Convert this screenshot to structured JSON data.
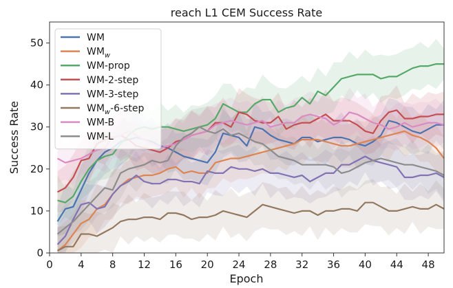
{
  "chart_data": {
    "type": "line",
    "title": "reach L1 CEM Success Rate",
    "xlabel": "Epoch",
    "ylabel": "Success Rate",
    "xlim": [
      0,
      50
    ],
    "ylim": [
      0,
      55
    ],
    "xticks": [
      0,
      4,
      8,
      12,
      16,
      20,
      24,
      28,
      32,
      36,
      40,
      44,
      48
    ],
    "yticks": [
      0,
      10,
      20,
      30,
      40,
      50
    ],
    "legend_position": "upper-left",
    "x": [
      1,
      2,
      3,
      4,
      5,
      6,
      7,
      8,
      9,
      10,
      11,
      12,
      13,
      14,
      15,
      16,
      17,
      18,
      19,
      20,
      21,
      22,
      23,
      24,
      25,
      26,
      27,
      28,
      29,
      30,
      31,
      32,
      33,
      34,
      35,
      36,
      37,
      38,
      39,
      40,
      41,
      42,
      43,
      44,
      45,
      46,
      47,
      48,
      49,
      50
    ],
    "series": [
      {
        "name": "WM",
        "label_main": "WM",
        "label_sub": "",
        "label_tail": "",
        "color": "#4c72b0",
        "values": [
          7.5,
          10.5,
          11,
          15,
          19,
          22,
          24,
          25,
          26.5,
          27,
          27.5,
          27,
          26.5,
          25.5,
          25,
          24,
          23,
          22.5,
          22,
          21.5,
          24,
          28.5,
          28,
          27.5,
          25.5,
          30,
          29.5,
          28,
          27,
          26.5,
          26,
          27.5,
          27.5,
          26.5,
          27,
          27.5,
          27.5,
          27,
          26,
          25.5,
          26.5,
          28,
          31.5,
          31,
          30,
          29,
          28.5,
          29.5,
          30.5,
          30.5
        ]
      },
      {
        "name": "WMw",
        "label_main": "WM",
        "label_sub": "w",
        "label_tail": "",
        "color": "#dd8452",
        "values": [
          0.5,
          2,
          4.5,
          7,
          8,
          10.5,
          11.5,
          14,
          16,
          17.5,
          18,
          18.5,
          18.5,
          19,
          20,
          20.5,
          19,
          19.5,
          19,
          19,
          21.5,
          22,
          22.5,
          22.5,
          23,
          23.5,
          24,
          24.5,
          25,
          25.5,
          26,
          27,
          27,
          27,
          26.5,
          26,
          25.5,
          25.5,
          26,
          26.5,
          27,
          27.5,
          28,
          28.5,
          29,
          28,
          27.5,
          26.5,
          25,
          22.5
        ]
      },
      {
        "name": "WM-prop",
        "label_main": "WM-prop",
        "label_sub": "",
        "label_tail": "",
        "color": "#55a868",
        "values": [
          12.5,
          12,
          13.5,
          17,
          20,
          22,
          23,
          23.5,
          26,
          28,
          29.5,
          30,
          29.5,
          30,
          30,
          29.5,
          29,
          29.5,
          30,
          30.5,
          32,
          35.5,
          34.5,
          33.5,
          33.5,
          35.5,
          36.5,
          36.5,
          33.5,
          34.5,
          35,
          37,
          35.5,
          38.5,
          37.5,
          39.5,
          41.5,
          42,
          42.5,
          42.5,
          42.5,
          41.5,
          42,
          42,
          43,
          44,
          44.5,
          44.5,
          45,
          45
        ]
      },
      {
        "name": "WM-2-step",
        "label_main": "WM-2-step",
        "label_sub": "",
        "label_tail": "",
        "color": "#c44e52",
        "values": [
          14.5,
          15.5,
          18,
          22,
          22.5,
          26,
          27,
          27.5,
          28,
          27,
          25.5,
          25,
          24.5,
          24,
          25,
          26.5,
          27,
          28,
          28.5,
          29,
          31,
          31,
          30,
          33.5,
          33,
          31.5,
          31,
          31,
          32.5,
          29.5,
          30.5,
          31,
          31,
          32,
          33,
          31.5,
          31.5,
          31.5,
          30.5,
          29,
          28.5,
          31.5,
          33.5,
          34,
          32,
          32,
          32.5,
          32.5,
          33,
          33
        ]
      },
      {
        "name": "WM-3-step",
        "label_main": "WM-3-step",
        "label_sub": "",
        "label_tail": "",
        "color": "#8172b3",
        "values": [
          2,
          4,
          8,
          11.5,
          12,
          10.5,
          11,
          14,
          16,
          17,
          18.5,
          17,
          16.5,
          16.5,
          17.5,
          17.5,
          17,
          17,
          16.5,
          19.5,
          19,
          19,
          20.5,
          20,
          20,
          19.5,
          20,
          19,
          19,
          18.5,
          18,
          18.5,
          17,
          18,
          19,
          19,
          21,
          21,
          22,
          23,
          22,
          21.5,
          21,
          20.5,
          18,
          18,
          18.5,
          18.5,
          19,
          18
        ]
      },
      {
        "name": "WMw-6-step",
        "label_main": "WM",
        "label_sub": "w",
        "label_tail": "-6-step",
        "color": "#937860",
        "values": [
          0.5,
          1.5,
          1.5,
          4.5,
          4.5,
          4,
          5,
          6,
          7.5,
          8,
          8,
          8.5,
          8.5,
          8,
          9.5,
          9.5,
          9,
          8,
          8.5,
          8.5,
          9,
          10,
          9.5,
          9,
          8.5,
          10,
          11.5,
          11,
          10.5,
          10,
          9.5,
          10,
          10,
          9,
          10,
          10,
          10.5,
          10.5,
          10,
          12,
          12,
          11,
          10,
          10,
          10.5,
          11,
          10.5,
          10.5,
          11.5,
          10.5
        ]
      },
      {
        "name": "WM-B",
        "label_main": "WM-B",
        "label_sub": "",
        "label_tail": "",
        "color": "#da8bc3",
        "values": [
          22.5,
          21.5,
          22,
          22.5,
          23.5,
          24.5,
          25,
          27.5,
          28,
          29,
          28,
          27,
          26,
          25,
          25.5,
          26,
          27,
          28,
          28.5,
          29,
          30.5,
          31,
          31.5,
          31,
          30.5,
          31,
          31.5,
          30,
          30.5,
          31,
          31,
          32.5,
          33,
          32.5,
          32,
          30.5,
          31.5,
          33.5,
          33,
          32,
          31,
          30.5,
          29.5,
          30,
          31,
          30,
          30.5,
          31,
          31,
          30.5
        ]
      },
      {
        "name": "WM-L",
        "label_main": "WM-L",
        "label_sub": "",
        "label_tail": "",
        "color": "#8c8c8c",
        "values": [
          4.5,
          6,
          7.5,
          9.5,
          11.5,
          13.5,
          15.5,
          15,
          19,
          20,
          20.5,
          21,
          22,
          21.5,
          22,
          25.5,
          27.5,
          28.5,
          30,
          29,
          28.5,
          29.5,
          28,
          28.5,
          27.5,
          26.5,
          26,
          24.5,
          23,
          22.5,
          22,
          21,
          21,
          21,
          21,
          20.5,
          19,
          19.5,
          20.5,
          21.5,
          22,
          22.5,
          22,
          21.5,
          21,
          21,
          20.5,
          20,
          19.5,
          18.5
        ]
      }
    ]
  }
}
